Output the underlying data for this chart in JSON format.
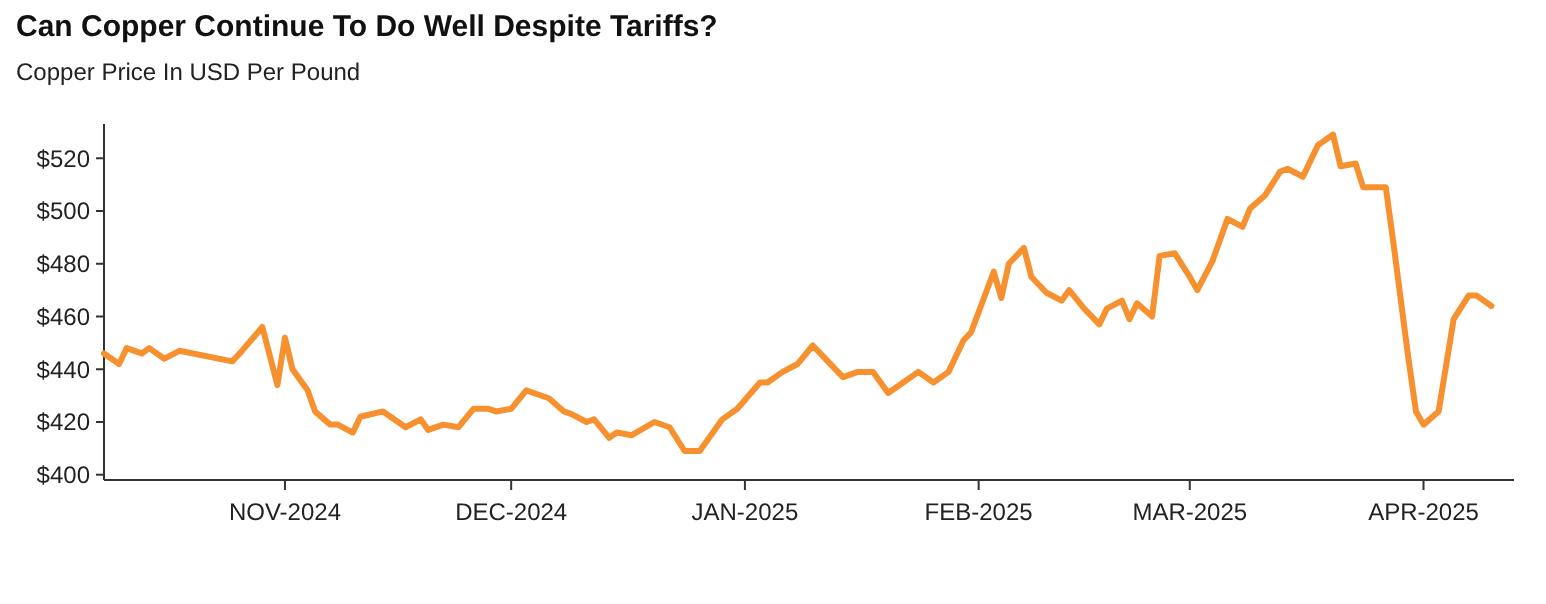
{
  "chart_data": {
    "type": "line",
    "title": "Can Copper Continue To Do Well Despite Tariffs?",
    "subtitle": "Copper Price In USD Per Pound",
    "xlim": [
      "2024-10-08",
      "2025-04-13"
    ],
    "xticks": [
      {
        "value": "2024-11-01",
        "label": "NOV-2024"
      },
      {
        "value": "2024-12-01",
        "label": "DEC-2024"
      },
      {
        "value": "2025-01-01",
        "label": "JAN-2025"
      },
      {
        "value": "2025-02-01",
        "label": "FEB-2025"
      },
      {
        "value": "2025-03-01",
        "label": "MAR-2025"
      },
      {
        "value": "2025-04-01",
        "label": "APR-2025"
      }
    ],
    "ylim": [
      398,
      533
    ],
    "yticks": [
      {
        "value": 400,
        "label": "$400"
      },
      {
        "value": 420,
        "label": "$420"
      },
      {
        "value": 440,
        "label": "$440"
      },
      {
        "value": 460,
        "label": "$460"
      },
      {
        "value": 480,
        "label": "$480"
      },
      {
        "value": 500,
        "label": "$500"
      },
      {
        "value": 520,
        "label": "$520"
      }
    ],
    "marker": "none",
    "line_style": "solid",
    "series": [
      {
        "color": "#f7912f",
        "x": [
          "2024-10-08",
          "2024-10-10",
          "2024-10-11",
          "2024-10-13",
          "2024-10-14",
          "2024-10-16",
          "2024-10-18",
          "2024-10-25",
          "2024-10-26",
          "2024-10-29",
          "2024-10-31",
          "2024-11-01",
          "2024-11-02",
          "2024-11-04",
          "2024-11-05",
          "2024-11-07",
          "2024-11-08",
          "2024-11-10",
          "2024-11-11",
          "2024-11-14",
          "2024-11-17",
          "2024-11-19",
          "2024-11-20",
          "2024-11-22",
          "2024-11-24",
          "2024-11-26",
          "2024-11-28",
          "2024-11-29",
          "2024-12-01",
          "2024-12-03",
          "2024-12-04",
          "2024-12-06",
          "2024-12-08",
          "2024-12-09",
          "2024-12-11",
          "2024-12-12",
          "2024-12-14",
          "2024-12-15",
          "2024-12-17",
          "2024-12-20",
          "2024-12-22",
          "2024-12-24",
          "2024-12-26",
          "2024-12-27",
          "2024-12-29",
          "2024-12-31",
          "2025-01-03",
          "2025-01-04",
          "2025-01-06",
          "2025-01-08",
          "2025-01-10",
          "2025-01-12",
          "2025-01-14",
          "2025-01-16",
          "2025-01-18",
          "2025-01-20",
          "2025-01-21",
          "2025-01-24",
          "2025-01-26",
          "2025-01-28",
          "2025-01-30",
          "2025-01-31",
          "2025-02-03",
          "2025-02-04",
          "2025-02-05",
          "2025-02-07",
          "2025-02-08",
          "2025-02-10",
          "2025-02-12",
          "2025-02-13",
          "2025-02-15",
          "2025-02-17",
          "2025-02-18",
          "2025-02-20",
          "2025-02-21",
          "2025-02-22",
          "2025-02-24",
          "2025-02-25",
          "2025-02-27",
          "2025-03-01",
          "2025-03-02",
          "2025-03-04",
          "2025-03-06",
          "2025-03-08",
          "2025-03-09",
          "2025-03-11",
          "2025-03-13",
          "2025-03-14",
          "2025-03-16",
          "2025-03-18",
          "2025-03-20",
          "2025-03-21",
          "2025-03-23",
          "2025-03-24",
          "2025-03-27",
          "2025-03-28",
          "2025-03-30",
          "2025-03-31",
          "2025-04-01",
          "2025-04-03",
          "2025-04-05",
          "2025-04-07",
          "2025-04-08",
          "2025-04-10"
        ],
        "values": [
          446,
          442,
          448,
          446,
          448,
          444,
          447,
          443,
          446,
          456,
          434,
          452,
          440,
          432,
          424,
          419,
          419,
          416,
          422,
          424,
          418,
          421,
          417,
          419,
          418,
          425,
          425,
          424,
          425,
          432,
          431,
          429,
          424,
          423,
          420,
          421,
          414,
          416,
          415,
          420,
          418,
          409,
          409,
          413,
          421,
          425,
          435,
          435,
          439,
          442,
          449,
          443,
          437,
          439,
          439,
          431,
          433,
          439,
          435,
          439,
          451,
          454,
          477,
          467,
          480,
          486,
          475,
          469,
          466,
          470,
          463,
          457,
          463,
          466,
          459,
          465,
          460,
          483,
          484,
          475,
          470,
          481,
          497,
          494,
          501,
          506,
          515,
          516,
          513,
          525,
          529,
          517,
          518,
          509,
          509,
          488,
          444,
          424,
          419,
          424,
          459,
          468,
          468,
          464
        ]
      }
    ]
  }
}
